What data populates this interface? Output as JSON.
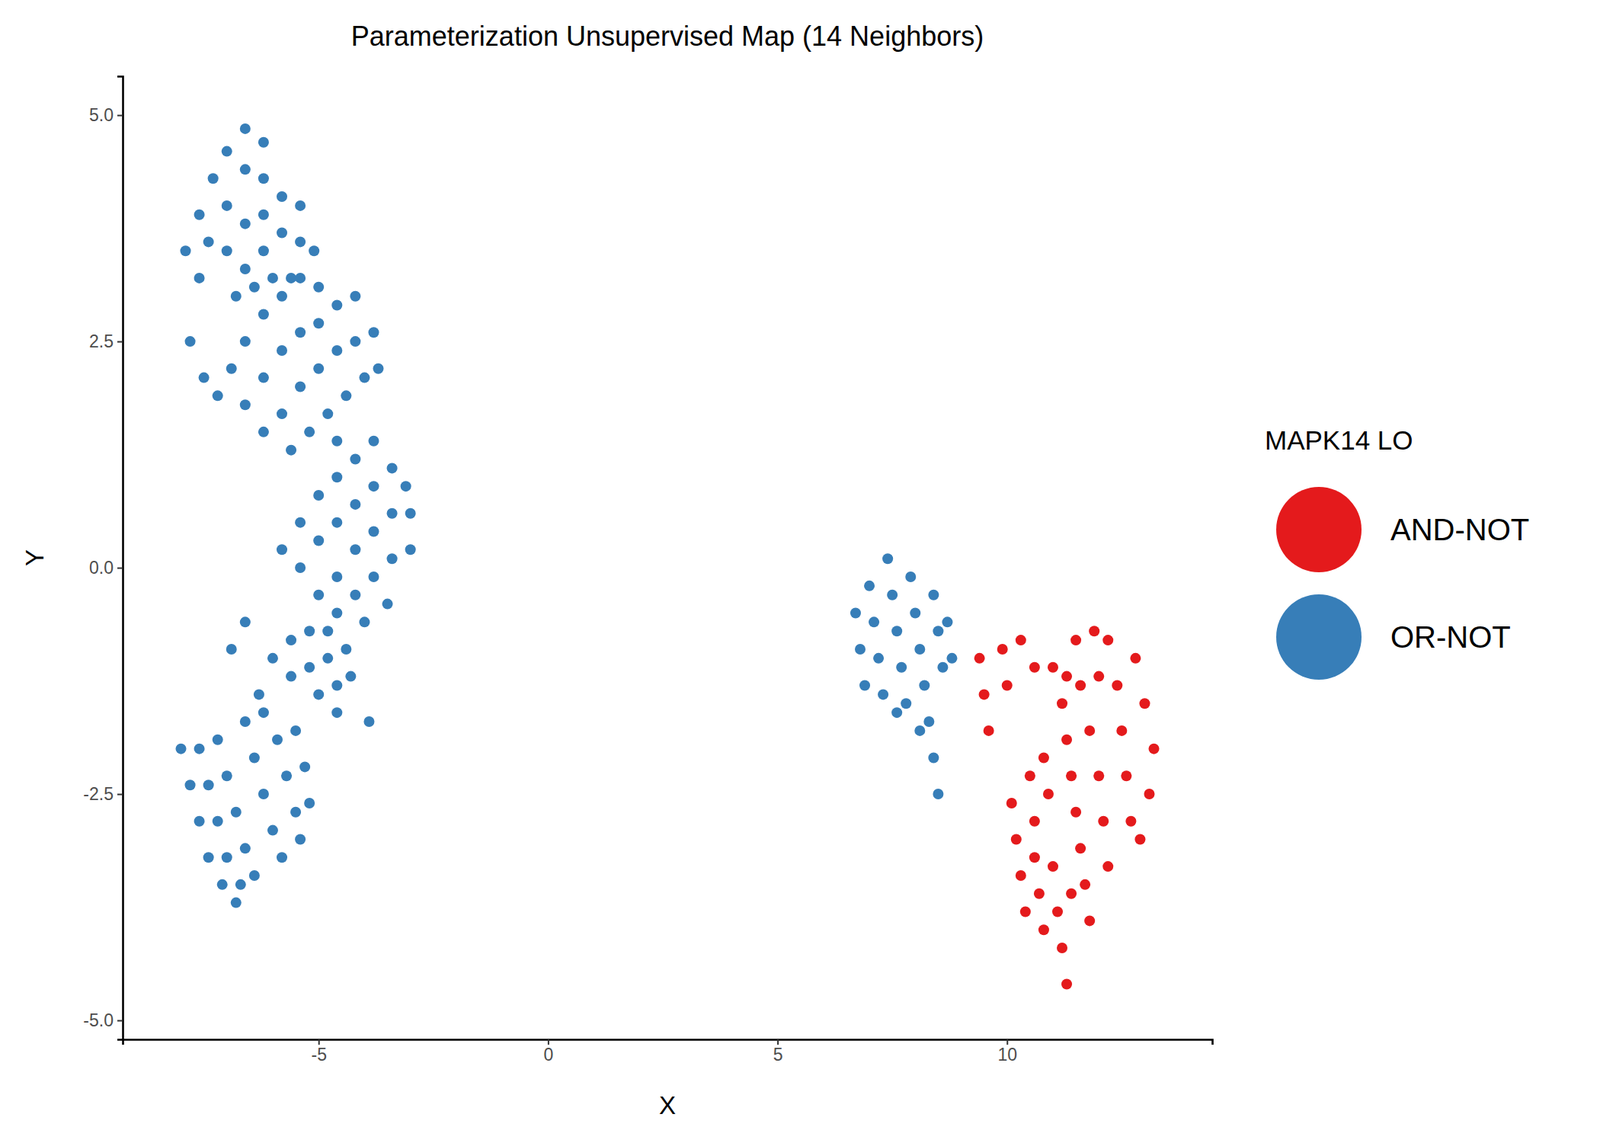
{
  "chart_data": {
    "type": "scatter",
    "title": "Parameterization Unsupervised Map (14 Neighbors)",
    "x_label": "X",
    "y_label": "Y",
    "legend_title": "MAPK14 LO",
    "legend": "right",
    "marker": "circle",
    "grid": false,
    "xlim": [
      -9.27,
      14.47
    ],
    "ylim": [
      -5.21,
      5.43
    ],
    "xticks": [
      -5,
      0,
      5,
      10
    ],
    "yticks": [
      {
        "value": -5,
        "label": "-5.0"
      },
      {
        "value": -2.5,
        "label": "-2.5"
      },
      {
        "value": 0,
        "label": "0.0"
      },
      {
        "value": 2.5,
        "label": "2.5"
      },
      {
        "value": 5,
        "label": "5.0"
      }
    ],
    "series": [
      {
        "name": "AND-NOT",
        "color": "#e41a1c",
        "x": [
          9.4,
          9.5,
          9.6,
          9.9,
          10.0,
          10.3,
          10.6,
          10.1,
          10.2,
          10.3,
          10.4,
          10.5,
          10.6,
          10.6,
          10.7,
          10.8,
          10.9,
          11.0,
          11.1,
          11.2,
          11.3,
          11.4,
          10.8,
          11.2,
          11.3,
          11.4,
          11.5,
          11.6,
          11.7,
          11.8,
          11.6,
          11.8,
          12.0,
          12.1,
          12.2,
          11.5,
          11.9,
          12.2,
          12.4,
          12.5,
          12.6,
          12.7,
          12.0,
          12.8,
          13.0,
          13.2,
          13.1,
          12.9,
          11.3,
          11.0
        ],
        "values": [
          -1.0,
          -1.4,
          -1.8,
          -0.9,
          -1.3,
          -0.8,
          -1.1,
          -2.6,
          -3.0,
          -3.4,
          -3.8,
          -2.3,
          -2.8,
          -3.2,
          -3.6,
          -4.0,
          -2.5,
          -3.3,
          -3.8,
          -4.2,
          -4.6,
          -3.6,
          -2.1,
          -1.5,
          -1.9,
          -2.3,
          -2.7,
          -3.1,
          -3.5,
          -3.9,
          -1.3,
          -1.8,
          -2.3,
          -2.8,
          -3.3,
          -0.8,
          -0.7,
          -0.8,
          -1.3,
          -1.8,
          -2.3,
          -2.8,
          -1.2,
          -1.0,
          -1.5,
          -2.0,
          -2.5,
          -3.0,
          -1.2,
          -1.1
        ]
      },
      {
        "name": "OR-NOT",
        "color": "#377eb8",
        "x": [
          -7.9,
          -7.6,
          -7.3,
          -7.0,
          -6.6,
          -6.2,
          -7.4,
          -7.0,
          -6.6,
          -6.2,
          -7.0,
          -6.6,
          -6.2,
          -5.8,
          -5.4,
          -6.6,
          -6.2,
          -5.8,
          -5.4,
          -5.1,
          -6.8,
          -6.4,
          -6.0,
          -5.6,
          -7.6,
          -7.8,
          -7.5,
          -7.2,
          -6.9,
          -6.6,
          -6.2,
          -5.8,
          -5.4,
          -5.0,
          -6.6,
          -6.2,
          -5.8,
          -5.4,
          -5.0,
          -4.6,
          -4.2,
          -6.2,
          -5.8,
          -5.4,
          -5.0,
          -4.6,
          -4.2,
          -3.8,
          -5.6,
          -5.2,
          -4.8,
          -4.4,
          -4.0,
          -3.7,
          -4.6,
          -5.8,
          -5.4,
          -5.0,
          -4.6,
          -4.2,
          -3.8,
          -5.4,
          -5.0,
          -4.6,
          -4.2,
          -3.8,
          -3.4,
          -3.1,
          -5.0,
          -4.6,
          -4.2,
          -3.8,
          -3.4,
          -3.0,
          -4.6,
          -4.2,
          -3.8,
          -3.4,
          -3.0,
          -4.0,
          -3.5,
          -6.0,
          -5.6,
          -5.2,
          -4.8,
          -5.6,
          -5.2,
          -4.8,
          -4.4,
          -5.0,
          -4.6,
          -4.3,
          -4.6,
          -3.9,
          -6.6,
          -6.9,
          -6.3,
          -8.0,
          -7.8,
          -7.6,
          -7.4,
          -7.1,
          -6.8,
          -7.6,
          -7.4,
          -7.2,
          -7.0,
          -6.7,
          -7.2,
          -7.0,
          -6.8,
          -6.6,
          -6.4,
          -6.6,
          -6.4,
          -6.2,
          -6.0,
          -5.8,
          -6.2,
          -5.9,
          -5.7,
          -5.5,
          -5.4,
          -5.5,
          -5.3,
          -5.2,
          6.7,
          6.8,
          6.9,
          7.0,
          7.1,
          7.2,
          7.3,
          7.4,
          7.5,
          7.6,
          7.7,
          7.8,
          7.9,
          8.0,
          8.1,
          8.2,
          8.3,
          8.4,
          8.5,
          8.6,
          8.4,
          8.5,
          8.7,
          8.8,
          8.1,
          7.6
        ],
        "values": [
          3.5,
          3.9,
          4.3,
          4.6,
          4.85,
          4.7,
          3.6,
          4.0,
          4.4,
          4.3,
          3.5,
          3.8,
          3.9,
          4.1,
          4.0,
          3.3,
          3.5,
          3.7,
          3.6,
          3.5,
          3.0,
          3.1,
          3.2,
          3.2,
          3.2,
          2.5,
          2.1,
          1.9,
          2.2,
          2.5,
          2.8,
          3.0,
          3.2,
          3.1,
          1.8,
          2.1,
          2.4,
          2.6,
          2.7,
          2.9,
          3.0,
          1.5,
          1.7,
          2.0,
          2.2,
          2.4,
          2.5,
          2.6,
          1.3,
          1.5,
          1.7,
          1.9,
          2.1,
          2.2,
          1.4,
          0.2,
          0.5,
          0.8,
          1.0,
          1.2,
          1.4,
          0.0,
          0.3,
          0.5,
          0.7,
          0.9,
          1.1,
          0.9,
          -0.3,
          -0.1,
          0.2,
          0.4,
          0.6,
          0.6,
          -0.5,
          -0.3,
          -0.1,
          0.1,
          0.2,
          -0.6,
          -0.4,
          -1.0,
          -0.8,
          -0.7,
          -0.7,
          -1.2,
          -1.1,
          -1.0,
          -0.9,
          -1.4,
          -1.3,
          -1.2,
          -1.6,
          -1.7,
          -0.6,
          -0.9,
          -1.4,
          -2.0,
          -2.4,
          -2.8,
          -3.2,
          -3.5,
          -3.7,
          -2.0,
          -2.4,
          -2.8,
          -3.2,
          -3.5,
          -1.9,
          -2.3,
          -2.7,
          -3.1,
          -3.4,
          -1.7,
          -2.1,
          -2.5,
          -2.9,
          -3.2,
          -1.6,
          -1.9,
          -2.3,
          -2.7,
          -3.0,
          -1.8,
          -2.2,
          -2.6,
          -0.5,
          -0.9,
          -1.3,
          -0.2,
          -0.6,
          -1.0,
          -1.4,
          0.1,
          -0.3,
          -0.7,
          -1.1,
          -1.5,
          -0.1,
          -0.5,
          -0.9,
          -1.3,
          -1.7,
          -0.3,
          -0.7,
          -1.1,
          -2.1,
          -2.5,
          -0.6,
          -1.0,
          -1.8,
          -1.6
        ]
      }
    ]
  }
}
